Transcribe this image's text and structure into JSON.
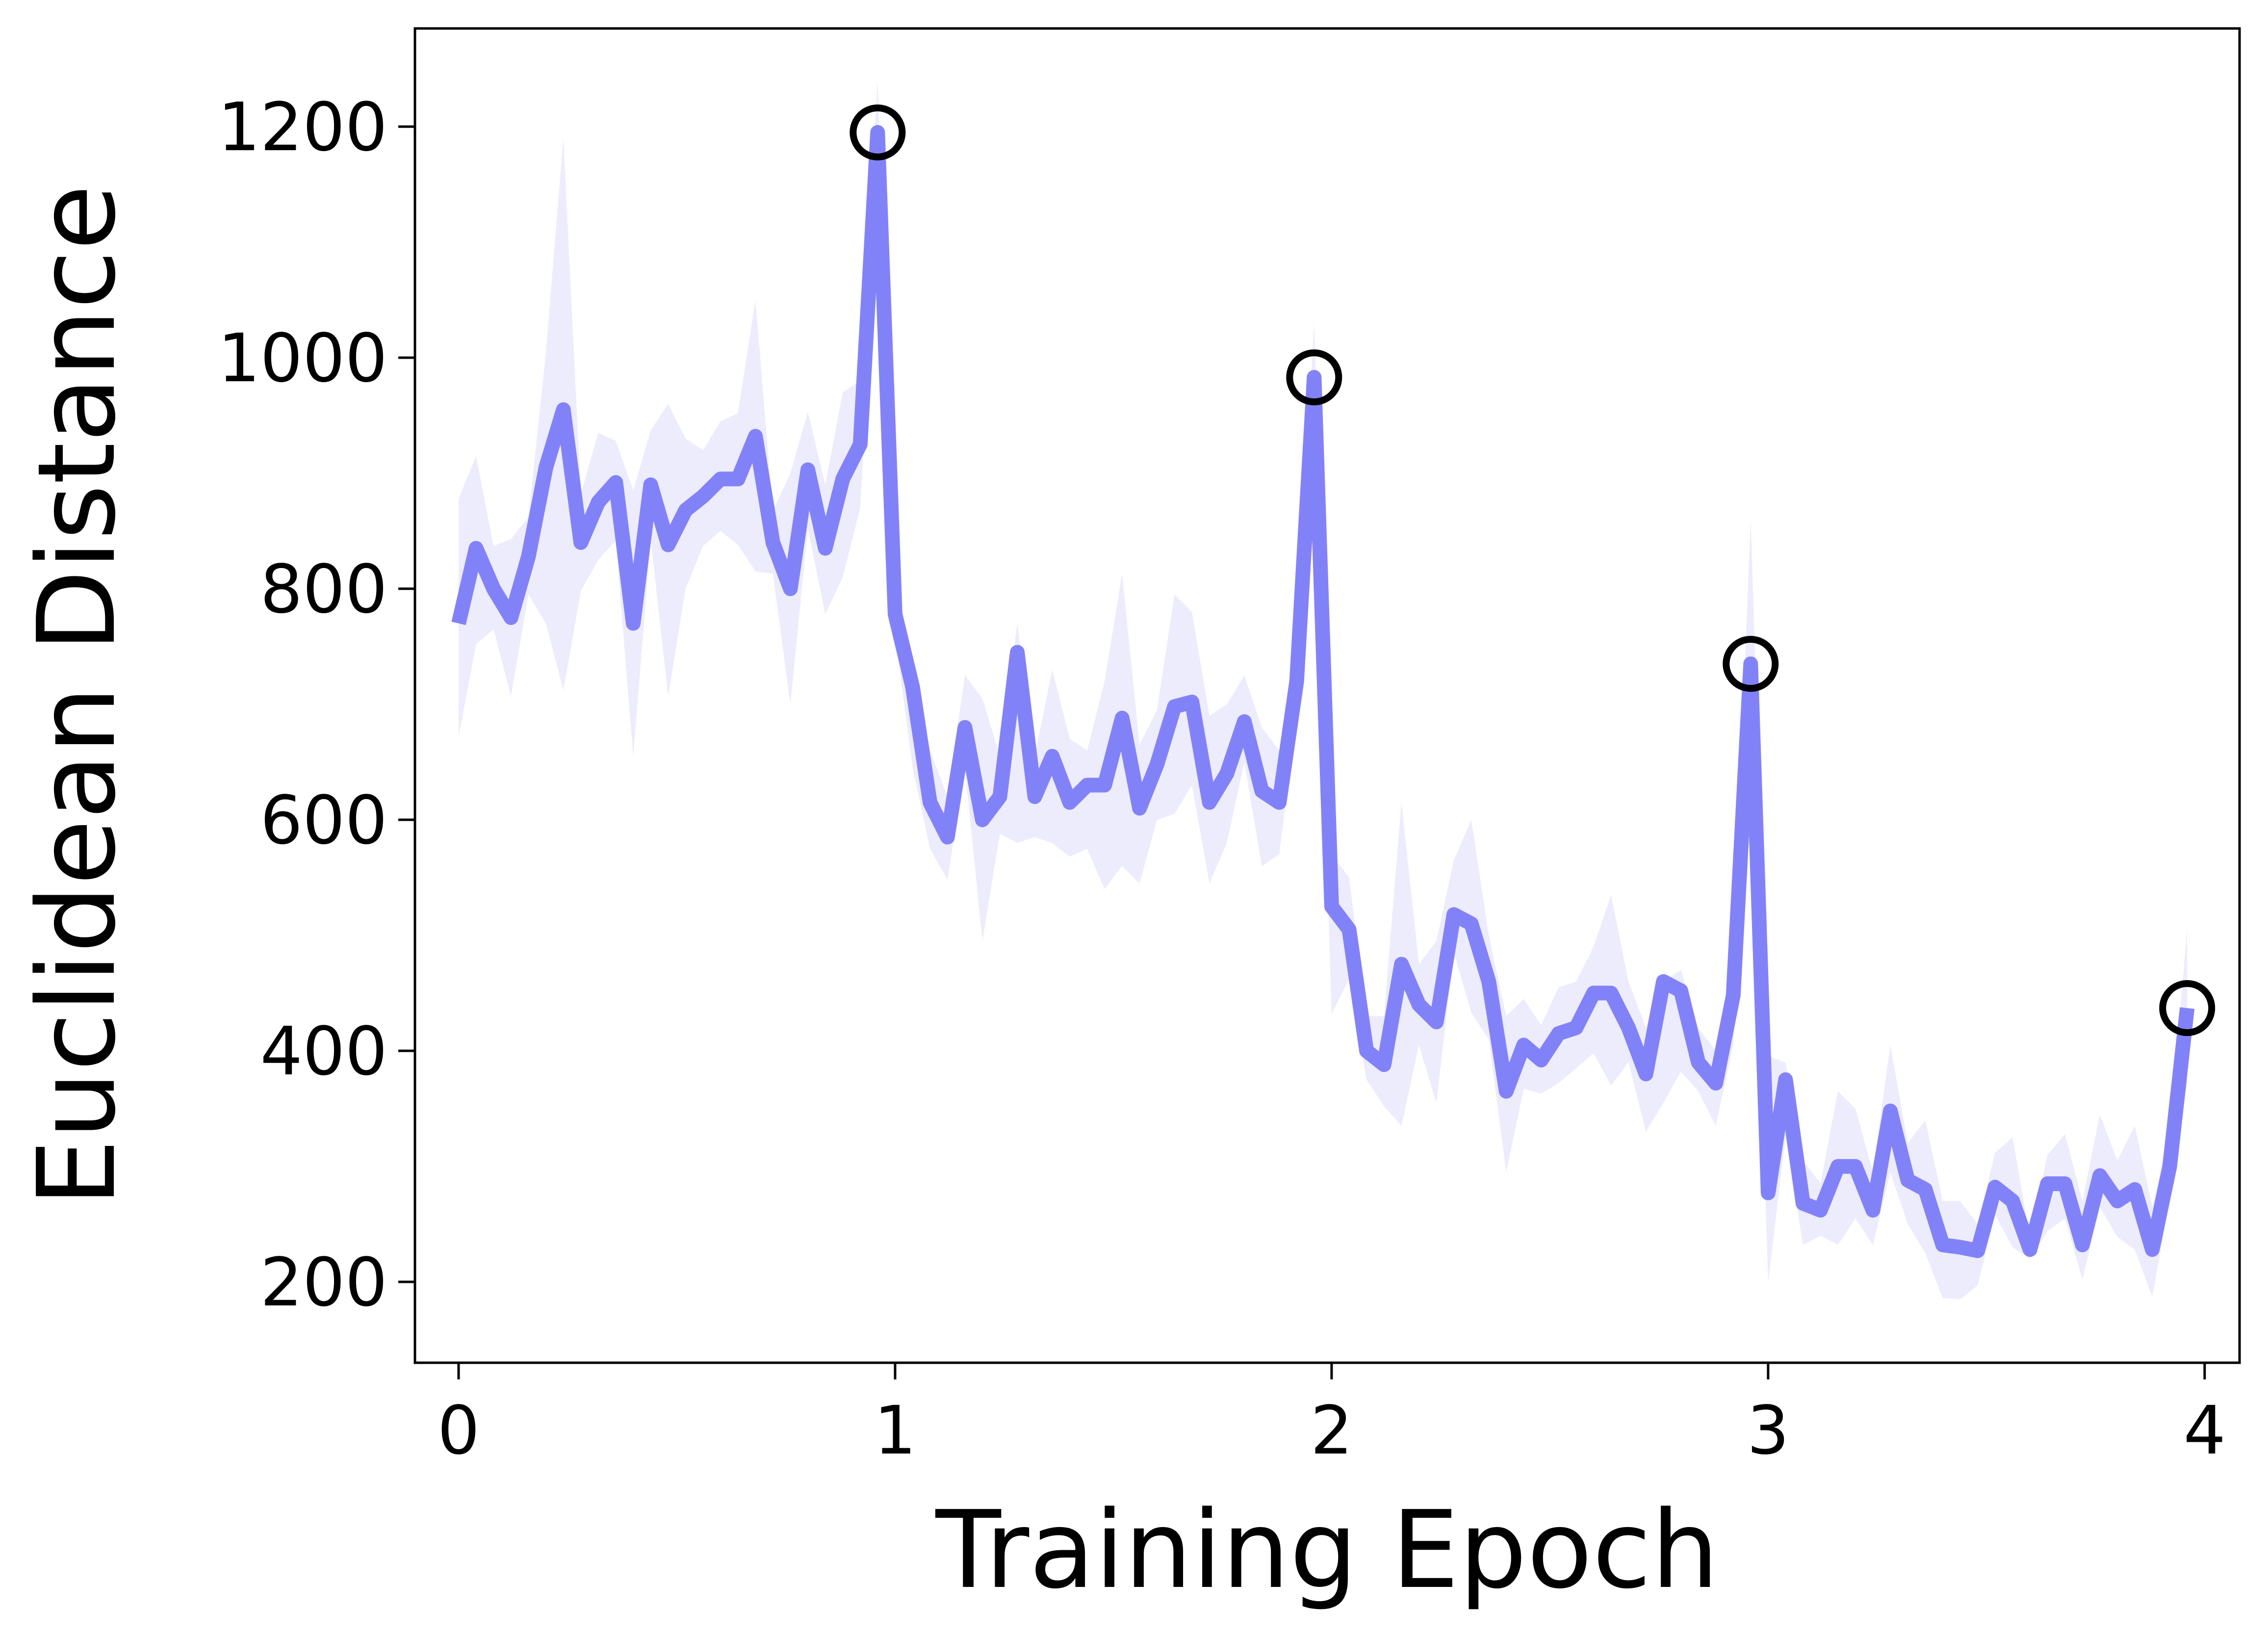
{
  "chart_data": {
    "type": "line",
    "xlabel": "Training Epoch",
    "ylabel": "Euclidean Distance",
    "xlim": [
      -0.1,
      4.08
    ],
    "ylim": [
      130,
      1285
    ],
    "xticks": [
      0,
      1,
      2,
      3,
      4
    ],
    "yticks": [
      200,
      400,
      600,
      800,
      1000,
      1200
    ],
    "grid": false,
    "legend": "none",
    "colors": {
      "line": "#8282f8",
      "band": "#ececfd",
      "marker": "#000000",
      "axis": "#000000"
    },
    "series": [
      {
        "x": [
          0,
          0.04,
          0.08,
          0.12,
          0.16,
          0.2,
          0.24,
          0.28,
          0.32,
          0.36,
          0.4,
          0.44,
          0.48,
          0.52,
          0.56,
          0.6,
          0.64,
          0.68,
          0.72,
          0.76,
          0.8,
          0.84,
          0.88,
          0.92,
          0.96,
          1.0,
          1.04,
          1.08,
          1.12,
          1.16,
          1.2,
          1.24,
          1.28,
          1.32,
          1.36,
          1.4,
          1.44,
          1.48,
          1.52,
          1.56,
          1.6,
          1.64,
          1.68,
          1.72,
          1.76,
          1.8,
          1.84,
          1.88,
          1.92,
          1.96,
          2.0,
          2.04,
          2.08,
          2.12,
          2.16,
          2.2,
          2.24,
          2.28,
          2.32,
          2.36,
          2.4,
          2.44,
          2.48,
          2.52,
          2.56,
          2.6,
          2.64,
          2.68,
          2.72,
          2.76,
          2.8,
          2.84,
          2.88,
          2.92,
          2.96,
          3.0,
          3.04,
          3.08,
          3.12,
          3.16,
          3.2,
          3.24,
          3.28,
          3.32,
          3.36,
          3.4,
          3.44,
          3.48,
          3.52,
          3.56,
          3.6,
          3.64,
          3.68,
          3.72,
          3.76,
          3.8,
          3.84,
          3.88,
          3.92,
          3.96
        ],
        "y": [
          770,
          835,
          800,
          775,
          828,
          905,
          955,
          840,
          875,
          892,
          770,
          890,
          838,
          868,
          880,
          895,
          895,
          932,
          840,
          800,
          903,
          835,
          895,
          925,
          1195,
          778,
          715,
          615,
          585,
          680,
          600,
          620,
          745,
          620,
          655,
          615,
          630,
          630,
          688,
          610,
          648,
          698,
          702,
          615,
          640,
          685,
          625,
          615,
          720,
          983,
          525,
          505,
          400,
          388,
          475,
          440,
          425,
          518,
          510,
          460,
          365,
          405,
          392,
          415,
          420,
          450,
          450,
          420,
          380,
          460,
          452,
          390,
          372,
          448,
          735,
          277,
          375,
          268,
          262,
          300,
          300,
          262,
          348,
          288,
          280,
          232,
          230,
          227,
          282,
          270,
          228,
          285,
          285,
          232,
          292,
          270,
          280,
          228,
          300,
          437
        ],
        "lower": [
          672,
          752,
          765,
          707,
          795,
          770,
          712,
          798,
          825,
          842,
          655,
          843,
          707,
          800,
          837,
          850,
          838,
          815,
          813,
          700,
          852,
          778,
          810,
          870,
          1145,
          760,
          645,
          575,
          548,
          645,
          495,
          588,
          580,
          585,
          580,
          568,
          575,
          540,
          560,
          545,
          600,
          605,
          630,
          545,
          580,
          650,
          560,
          570,
          690,
          935,
          432,
          462,
          375,
          352,
          335,
          405,
          355,
          485,
          433,
          410,
          295,
          367,
          363,
          372,
          385,
          398,
          370,
          390,
          330,
          355,
          382,
          365,
          335,
          405,
          670,
          200,
          325,
          232,
          240,
          232,
          255,
          232,
          295,
          250,
          225,
          186,
          185,
          197,
          258,
          230,
          220,
          244,
          255,
          202,
          265,
          239,
          228,
          187,
          270,
          372
        ],
        "upper": [
          878,
          915,
          837,
          843,
          862,
          1005,
          1190,
          882,
          935,
          928,
          885,
          937,
          960,
          930,
          920,
          945,
          952,
          1050,
          867,
          900,
          953,
          890,
          970,
          980,
          1240,
          798,
          725,
          660,
          620,
          725,
          705,
          655,
          770,
          655,
          730,
          670,
          660,
          720,
          813,
          665,
          695,
          795,
          780,
          690,
          700,
          725,
          680,
          660,
          760,
          1030,
          570,
          550,
          430,
          430,
          615,
          475,
          495,
          565,
          600,
          500,
          430,
          445,
          422,
          455,
          460,
          490,
          535,
          460,
          420,
          460,
          470,
          420,
          400,
          478,
          860,
          395,
          390,
          305,
          285,
          365,
          350,
          295,
          405,
          320,
          340,
          270,
          270,
          250,
          312,
          325,
          238,
          310,
          328,
          270,
          345,
          305,
          335,
          265,
          330,
          505
        ]
      }
    ],
    "markers": [
      {
        "x": 0.96,
        "y": 1195
      },
      {
        "x": 1.96,
        "y": 983
      },
      {
        "x": 2.96,
        "y": 735
      },
      {
        "x": 3.96,
        "y": 437
      }
    ]
  }
}
